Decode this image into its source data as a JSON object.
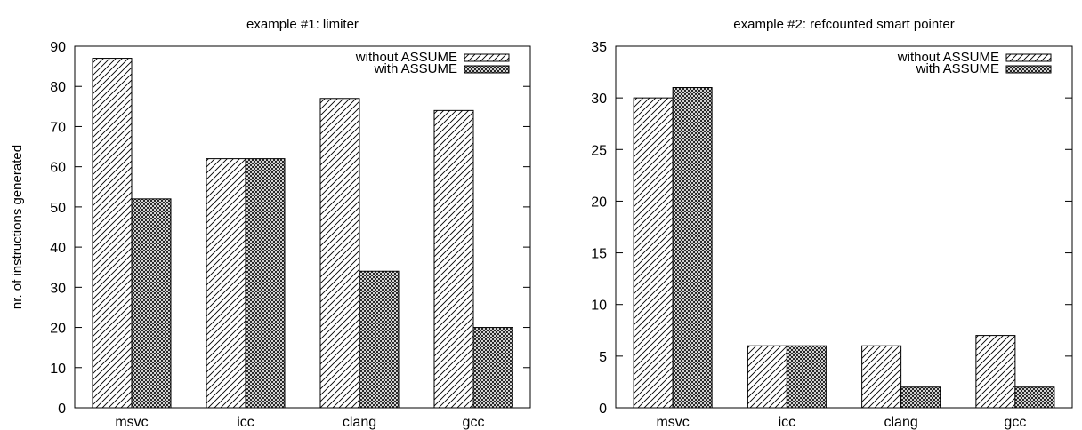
{
  "chart_data": [
    {
      "type": "bar",
      "title": "example #1: limiter",
      "ylabel": "nr. of instructions generated",
      "xlabel": "",
      "categories": [
        "msvc",
        "icc",
        "clang",
        "gcc"
      ],
      "series": [
        {
          "name": "without ASSUME",
          "values": [
            87,
            62,
            77,
            74
          ],
          "pattern": "diagonal-hatch"
        },
        {
          "name": "with ASSUME",
          "values": [
            52,
            62,
            34,
            20
          ],
          "pattern": "crosshatch"
        }
      ],
      "ylim": [
        0,
        90
      ],
      "yticks": [
        0,
        10,
        20,
        30,
        40,
        50,
        60,
        70,
        80,
        90
      ],
      "legend_position": "top-right",
      "grid": false
    },
    {
      "type": "bar",
      "title": "example #2: refcounted smart pointer",
      "ylabel": "",
      "xlabel": "",
      "categories": [
        "msvc",
        "icc",
        "clang",
        "gcc"
      ],
      "series": [
        {
          "name": "without ASSUME",
          "values": [
            30,
            6,
            6,
            7
          ],
          "pattern": "diagonal-hatch"
        },
        {
          "name": "with ASSUME",
          "values": [
            31,
            6,
            2,
            2
          ],
          "pattern": "crosshatch"
        }
      ],
      "ylim": [
        0,
        35
      ],
      "yticks": [
        0,
        5,
        10,
        15,
        20,
        25,
        30,
        35
      ],
      "legend_position": "top-right",
      "grid": false
    }
  ]
}
